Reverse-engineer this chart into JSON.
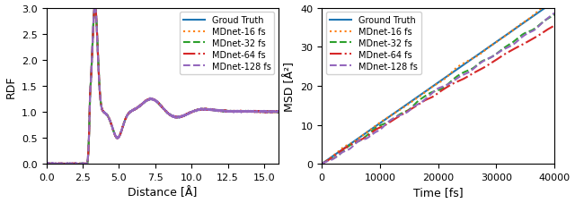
{
  "rdf_xlabel": "Distance [Å]",
  "rdf_ylabel": "RDF",
  "rdf_xlim": [
    0.0,
    16.0
  ],
  "rdf_ylim": [
    0.0,
    3.0
  ],
  "rdf_xticks": [
    0.0,
    2.5,
    5.0,
    7.5,
    10.0,
    12.5,
    15.0
  ],
  "rdf_yticks": [
    0.0,
    0.5,
    1.0,
    1.5,
    2.0,
    2.5,
    3.0
  ],
  "msd_xlabel": "Time [fs]",
  "msd_ylabel": "MSD [Å²]",
  "msd_xlim": [
    0,
    40000
  ],
  "msd_ylim": [
    0,
    40
  ],
  "msd_xticks": [
    0,
    10000,
    20000,
    30000,
    40000
  ],
  "msd_yticks": [
    0,
    10,
    20,
    30,
    40
  ],
  "legend_labels_rdf": [
    "Groud Truth",
    "MDnet-16 fs",
    "MDnet-32 fs",
    "MDnet-64 fs",
    "MDnet-128 fs"
  ],
  "legend_labels_msd": [
    "Ground Truth",
    "MDnet-16 fs",
    "MDnet-32 fs",
    "MDnet-64 fs",
    "MDnet-128 fs"
  ],
  "colors": [
    "#1f77b4",
    "#ff7f0e",
    "#2ca02c",
    "#d62728",
    "#9467bd"
  ],
  "linestyles_rdf": [
    "-",
    ":",
    "--",
    "-.",
    "--"
  ],
  "linestyles_msd": [
    "-",
    ":",
    "--",
    "-.",
    "--"
  ],
  "linewidths": [
    1.5,
    1.5,
    1.5,
    1.5,
    1.5
  ],
  "msd_slopes": [
    0.00104,
    0.00104,
    0.00096,
    0.00088,
    0.00095
  ],
  "msd_noise": [
    0.0,
    0.015,
    0.018,
    0.02,
    0.022
  ],
  "background_color": "#ffffff"
}
